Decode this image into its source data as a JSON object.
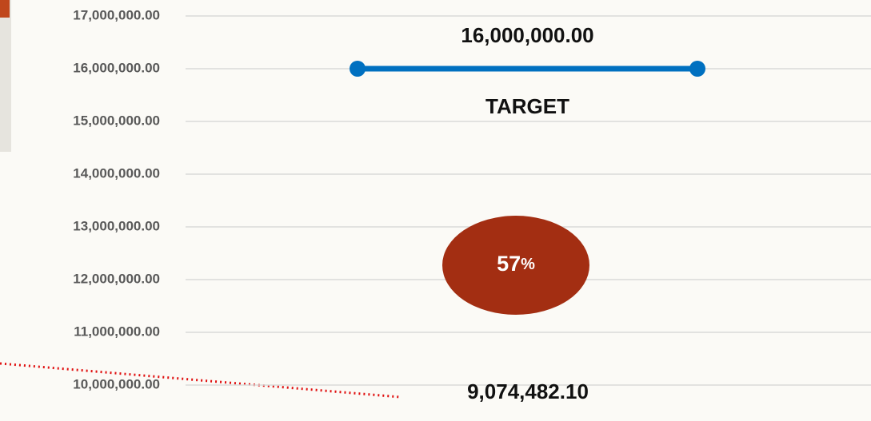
{
  "chart_data": {
    "type": "target",
    "ylim": [
      9318000,
      17303000
    ],
    "yticks": [
      {
        "value": 10000000,
        "label": "10,000,000.00"
      },
      {
        "value": 11000000,
        "label": "11,000,000.00"
      },
      {
        "value": 12000000,
        "label": "12,000,000.00"
      },
      {
        "value": 13000000,
        "label": "13,000,000.00"
      },
      {
        "value": 14000000,
        "label": "14,000,000.00"
      },
      {
        "value": 15000000,
        "label": "15,000,000.00"
      },
      {
        "value": 16000000,
        "label": "16,000,000.00"
      },
      {
        "value": 17000000,
        "label": "17,000,000.00"
      }
    ],
    "grid": true,
    "target": {
      "name": "TARGET",
      "value": 16000000,
      "value_label": "16,000,000.00",
      "color": "#0070c0"
    },
    "actual": {
      "value": 9074482.1,
      "value_label": "9,074,482.10"
    },
    "percent": {
      "value": 57,
      "unit": "%",
      "color": "#a32e12"
    }
  }
}
